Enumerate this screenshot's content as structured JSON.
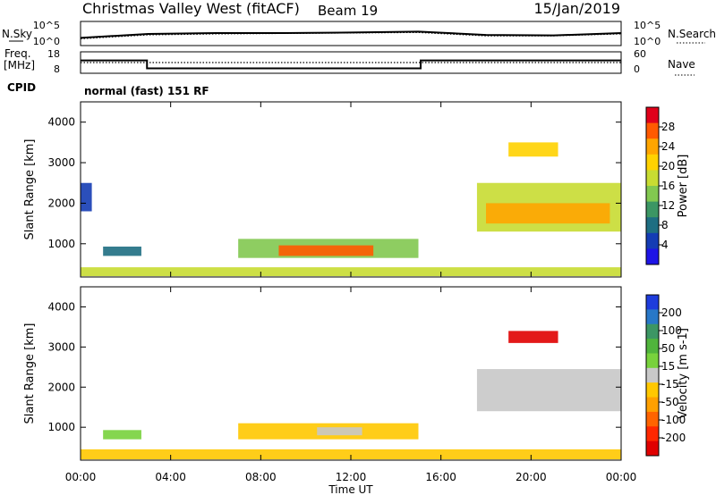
{
  "header": {
    "station": "Christmas Valley West (fitACF)",
    "beam": "Beam 19",
    "date": "15/Jan/2019"
  },
  "noise_panel": {
    "left_label": "N.Sky",
    "right_label": "N.Search",
    "left_ticks": [
      "10^5",
      "10^0"
    ],
    "right_ticks": [
      "10^5",
      "10^0"
    ]
  },
  "freq_panel": {
    "left_label_1": "Freq.",
    "left_label_2": "[MHz]",
    "left_ticks": [
      "18",
      "8"
    ],
    "right_label": "Nave",
    "right_ticks": [
      "60",
      "0"
    ]
  },
  "cpid": {
    "label": "CPID",
    "value": "normal (fast) 151 RF"
  },
  "x_axis": {
    "title": "Time UT",
    "ticks": [
      "00:00",
      "04:00",
      "08:00",
      "12:00",
      "16:00",
      "20:00",
      "00:00"
    ]
  },
  "power_colorbar": {
    "label": "Power [dB]",
    "ticks": [
      "28",
      "24",
      "20",
      "16",
      "12",
      "8",
      "4"
    ],
    "colors": [
      "#e0001a",
      "#ff5a00",
      "#ffa500",
      "#ffd200",
      "#c8dc32",
      "#82c850",
      "#3c9664",
      "#1e6e82",
      "#143cb4",
      "#1e14e6"
    ]
  },
  "velocity_colorbar": {
    "label": "Velocity [m s-1]",
    "ticks": [
      "200",
      "100",
      "50",
      "15",
      "-15",
      "-50",
      "-100",
      "-200"
    ],
    "colors": [
      "#1e3cdc",
      "#2878c8",
      "#3c9664",
      "#50b43c",
      "#78d23c",
      "#c8c8c8",
      "#ffc800",
      "#ffa000",
      "#ff6400",
      "#ff2800",
      "#e00000"
    ]
  },
  "chart_data": [
    {
      "type": "line",
      "title": "N.Sky / N.Search",
      "x": [
        0,
        3,
        6,
        9,
        12,
        15,
        18,
        21,
        24
      ],
      "series": [
        {
          "values": [
            1.6,
            2.4,
            2.6,
            2.6,
            2.7,
            2.9,
            2.2,
            2.1,
            2.6
          ]
        },
        {
          "values": [
            1.4,
            2.2,
            2.4,
            2.5,
            2.6,
            2.7,
            2.0,
            2.0,
            2.4
          ]
        }
      ],
      "xlim": [
        0,
        24
      ]
    },
    {
      "type": "line",
      "x": [
        0,
        2.95,
        2.95,
        15.1,
        15.1,
        24
      ],
      "series": [
        {
          "name": "Freq. [MHz]",
          "values": [
            14,
            14,
            10.3,
            10.3,
            14,
            14
          ],
          "ylim": [
            8,
            18
          ]
        },
        {
          "name": "Nave",
          "values": [
            30,
            30,
            30,
            30,
            30,
            30
          ],
          "ylim": [
            0,
            60
          ]
        }
      ],
      "xlim": [
        0,
        24
      ]
    },
    {
      "type": "heatmap",
      "variable": "power",
      "xlabel": "Time UT",
      "ylabel": "Slant Range [km]",
      "xlim": [
        0,
        24
      ],
      "ylim": [
        180,
        4500
      ],
      "yticks": [
        1000,
        2000,
        3000,
        4000
      ],
      "zlim": [
        0,
        30
      ],
      "regions": [
        {
          "t0": 7.0,
          "t1": 15.0,
          "r0": 650,
          "r1": 1120,
          "value": 12
        },
        {
          "t0": 8.8,
          "t1": 13.0,
          "r0": 700,
          "r1": 960,
          "value": 25
        },
        {
          "t0": 1.0,
          "t1": 2.7,
          "r0": 700,
          "r1": 930,
          "value": 8
        },
        {
          "t0": 17.6,
          "t1": 24.0,
          "r0": 1300,
          "r1": 2500,
          "value": 15
        },
        {
          "t0": 18.0,
          "t1": 23.5,
          "r0": 1500,
          "r1": 2000,
          "value": 22
        },
        {
          "t0": 19.0,
          "t1": 21.2,
          "r0": 3150,
          "r1": 3500,
          "value": 18
        },
        {
          "t0": 0.0,
          "t1": 0.5,
          "r0": 1800,
          "r1": 2500,
          "value": 5
        },
        {
          "t0": 0.0,
          "t1": 24.0,
          "r0": 200,
          "r1": 420,
          "value": 15
        }
      ]
    },
    {
      "type": "heatmap",
      "variable": "velocity",
      "xlabel": "Time UT",
      "ylabel": "Slant Range [km]",
      "xlim": [
        0,
        24
      ],
      "ylim": [
        180,
        4500
      ],
      "yticks": [
        1000,
        2000,
        3000,
        4000
      ],
      "zlim": [
        -200,
        200
      ],
      "regions": [
        {
          "t0": 7.0,
          "t1": 15.0,
          "r0": 700,
          "r1": 1100,
          "value": -40
        },
        {
          "t0": 10.5,
          "t1": 12.5,
          "r0": 800,
          "r1": 1000,
          "value": 15
        },
        {
          "t0": 1.0,
          "t1": 2.7,
          "r0": 700,
          "r1": 930,
          "value": 20
        },
        {
          "t0": 17.6,
          "t1": 24.0,
          "r0": 1400,
          "r1": 2450,
          "value": 0
        },
        {
          "t0": 19.0,
          "t1": 21.2,
          "r0": 3100,
          "r1": 3400,
          "value": -180
        },
        {
          "t0": 0.0,
          "t1": 24.0,
          "r0": 200,
          "r1": 450,
          "value": -40
        }
      ]
    }
  ]
}
